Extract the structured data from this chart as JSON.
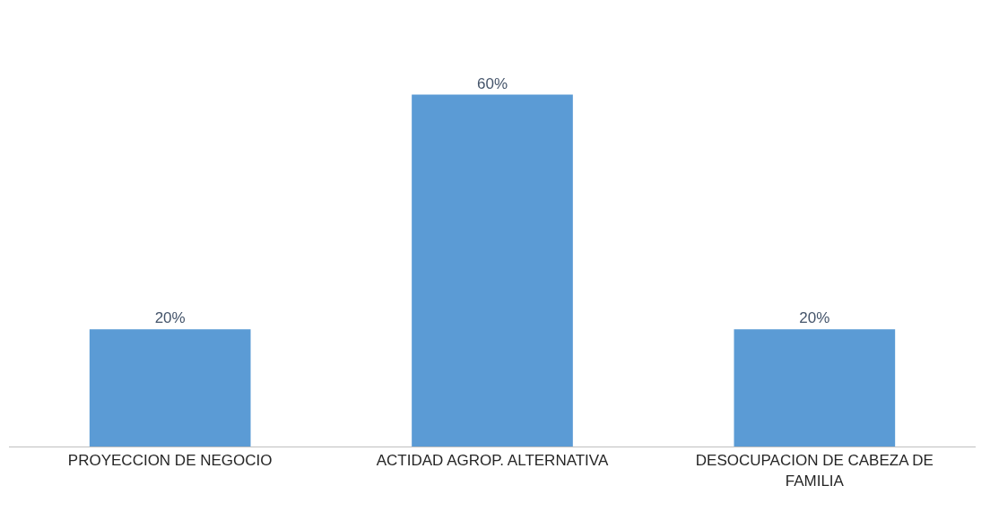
{
  "chart_data": {
    "type": "bar",
    "categories": [
      "PROYECCION DE NEGOCIO",
      "ACTIDAD AGROP. ALTERNATIVA",
      "DESOCUPACION DE CABEZA DE FAMILIA"
    ],
    "values": [
      20,
      60,
      20
    ],
    "value_labels": [
      "20%",
      "60%",
      "20%"
    ],
    "color": "#5b9bd5"
  }
}
